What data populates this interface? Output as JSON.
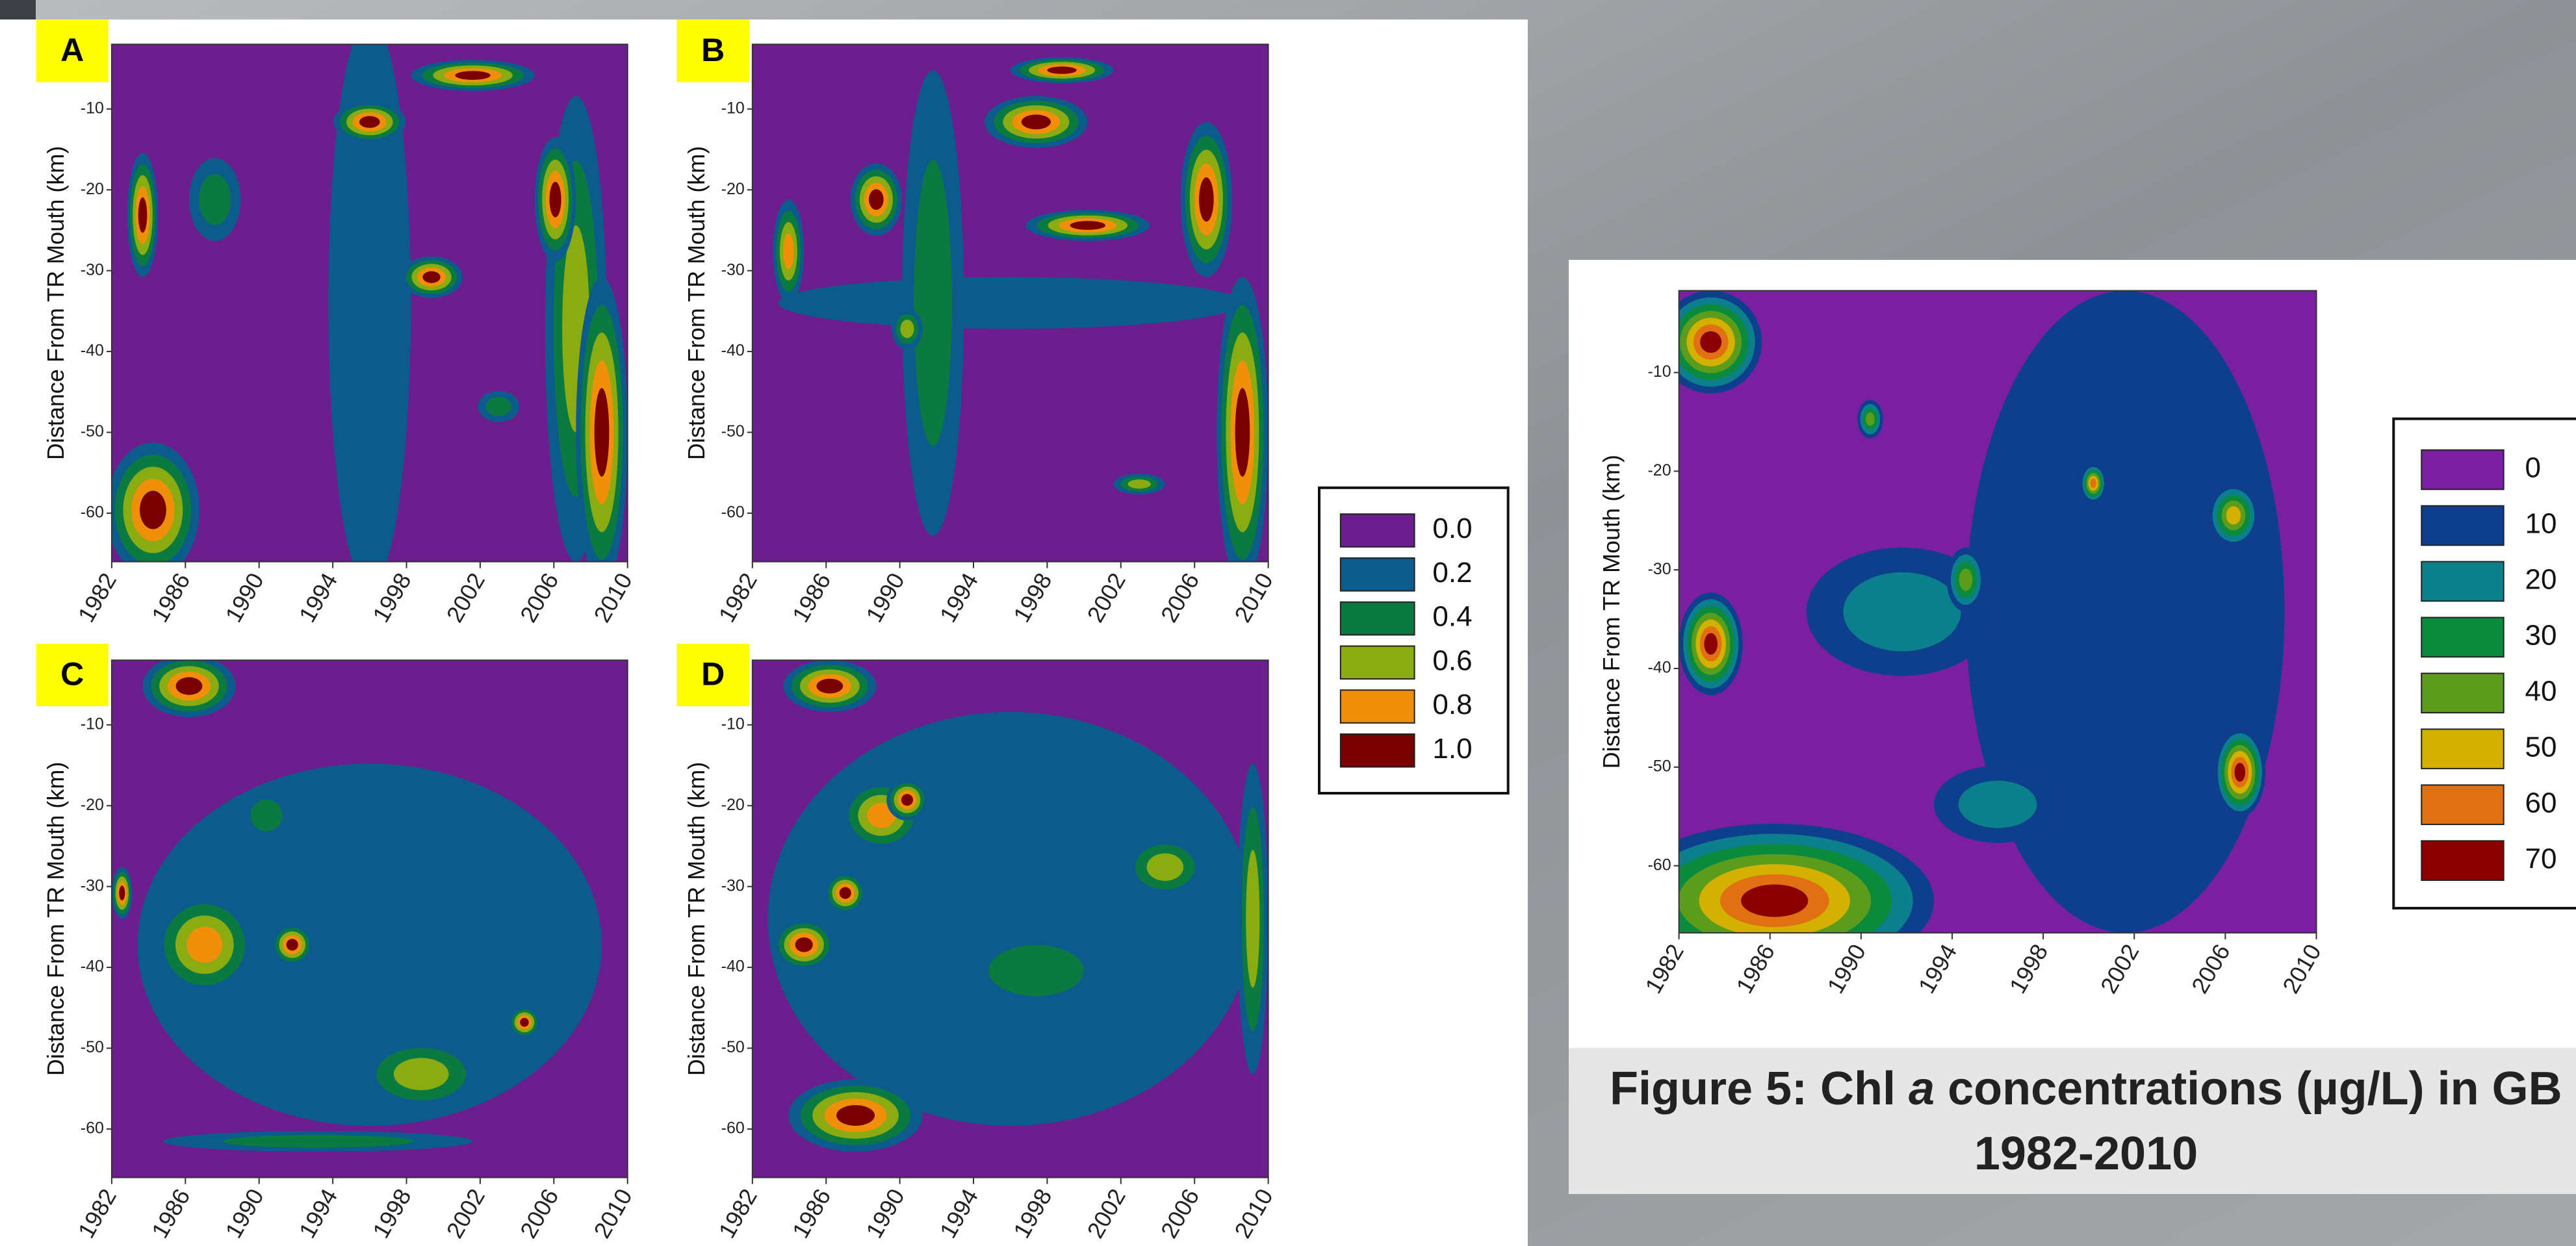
{
  "chart_data": [
    {
      "type": "contour",
      "panel": "A",
      "y_label": "Distance From TR Mouth (km)",
      "xlim": [
        1982,
        2010
      ],
      "ylim": [
        -66,
        -2
      ],
      "xticks": [
        1982,
        1986,
        1990,
        1994,
        1998,
        2002,
        2006,
        2010
      ],
      "yticks": [
        -10,
        -20,
        -30,
        -40,
        -50,
        -60
      ]
    },
    {
      "type": "contour",
      "panel": "B",
      "y_label": "Distance From TR Mouth (km)",
      "xlim": [
        1982,
        2010
      ],
      "ylim": [
        -66,
        -2
      ],
      "xticks": [
        1982,
        1986,
        1990,
        1994,
        1998,
        2002,
        2006,
        2010
      ],
      "yticks": [
        -10,
        -20,
        -30,
        -40,
        -50,
        -60
      ]
    },
    {
      "type": "contour",
      "panel": "C",
      "y_label": "Distance From TR Mouth (km)",
      "xlim": [
        1982,
        2010
      ],
      "ylim": [
        -66,
        -2
      ],
      "xticks": [
        1982,
        1986,
        1990,
        1994,
        1998,
        2002,
        2006,
        2010
      ],
      "yticks": [
        -10,
        -20,
        -30,
        -40,
        -50,
        -60
      ]
    },
    {
      "type": "contour",
      "panel": "D",
      "y_label": "Distance From TR Mouth (km)",
      "xlim": [
        1982,
        2010
      ],
      "ylim": [
        -66,
        -2
      ],
      "xticks": [
        1982,
        1986,
        1990,
        1994,
        1998,
        2002,
        2006,
        2010
      ],
      "yticks": [
        -10,
        -20,
        -30,
        -40,
        -50,
        -60
      ]
    },
    {
      "type": "contour",
      "y_label": "Distance From TR Mouth (km)",
      "xlim": [
        1982,
        2010
      ],
      "ylim": [
        -66.8,
        -1.7
      ],
      "xticks": [
        1982,
        1986,
        1990,
        1994,
        1998,
        2002,
        2006,
        2010
      ],
      "yticks": [
        -10,
        -20,
        -30,
        -40,
        -50,
        -60
      ]
    }
  ],
  "legends": [
    {
      "levels": [
        {
          "value": 0,
          "label": "0.0"
        },
        {
          "value": 0.2,
          "label": "0.2"
        },
        {
          "value": 0.4,
          "label": "0.4"
        },
        {
          "value": 0.6,
          "label": "0.6"
        },
        {
          "value": 0.8,
          "label": "0.8"
        },
        {
          "value": 1,
          "label": "1.0"
        }
      ],
      "colors": [
        "#6c1d8e",
        "#0b5c8c",
        "#0a7a40",
        "#8aab12",
        "#f0900a",
        "#7a0000"
      ]
    },
    {
      "levels": [
        0,
        10,
        20,
        30,
        40,
        50,
        60,
        70
      ],
      "colors": [
        "#7b1fa2",
        "#0e3f8c",
        "#0b7f8c",
        "#0a8a3c",
        "#5c9c1c",
        "#d4b000",
        "#e07012",
        "#8b0000"
      ]
    }
  ],
  "caption": {
    "line1": [
      "Figure 5: Chl ",
      "a",
      " concentrations (µg/L) in GB"
    ],
    "line2": "1982-2010"
  }
}
